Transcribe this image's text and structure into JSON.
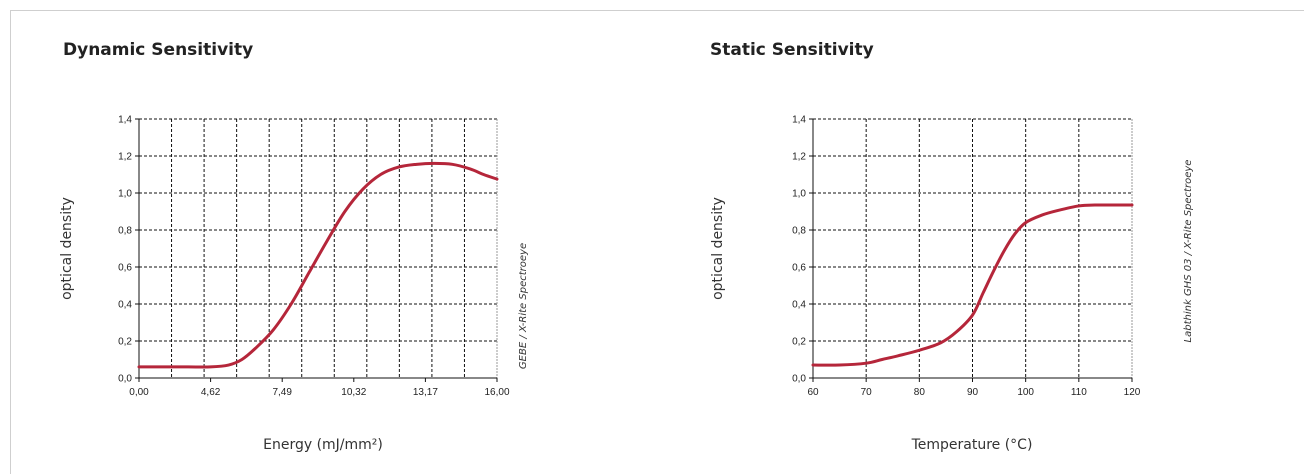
{
  "chart_data": [
    {
      "type": "line",
      "title": "Dynamic Sensitivity",
      "xlabel": "Energy (mJ/mm²)",
      "ylabel": "optical density",
      "source_note": "GEBE / X-Rite Spectroeye",
      "x_ticks": [
        "0,00",
        "4,62",
        "7,49",
        "10,32",
        "13,17",
        "16,00"
      ],
      "y_ticks": [
        "0,0",
        "0,2",
        "0,4",
        "0,6",
        "0,8",
        "1,0",
        "1,2",
        "1,4"
      ],
      "xlim": [
        0,
        16
      ],
      "ylim": [
        0,
        1.4
      ],
      "x_minor_gridlines": 11,
      "grid": true,
      "line_color": "#b5263a",
      "series": [
        {
          "x": [
            0,
            1.2,
            2.2,
            3.2,
            4.0,
            4.6,
            5.2,
            6.0,
            6.8,
            7.6,
            8.4,
            9.2,
            10.0,
            10.8,
            11.6,
            12.4,
            13.2,
            14.0,
            14.8,
            15.4,
            16.0
          ],
          "values": [
            0.06,
            0.06,
            0.06,
            0.06,
            0.07,
            0.1,
            0.16,
            0.26,
            0.4,
            0.57,
            0.74,
            0.9,
            1.02,
            1.1,
            1.14,
            1.155,
            1.16,
            1.155,
            1.13,
            1.1,
            1.075
          ]
        }
      ]
    },
    {
      "type": "line",
      "title": "Static Sensitivity",
      "xlabel": "Temperature (°C)",
      "ylabel": "optical density",
      "source_note": "Labthink GHS 03 / X-Rite Spectroeye",
      "x_ticks": [
        "60",
        "70",
        "80",
        "90",
        "100",
        "110",
        "120"
      ],
      "y_ticks": [
        "0,0",
        "0,2",
        "0,4",
        "0,6",
        "0,8",
        "1,0",
        "1,2",
        "1,4"
      ],
      "xlim": [
        60,
        120
      ],
      "ylim": [
        0,
        1.4
      ],
      "grid": true,
      "line_color": "#b5263a",
      "series": [
        {
          "x": [
            60,
            65,
            70,
            73,
            76,
            80,
            84,
            87,
            90,
            92,
            94,
            96,
            98,
            100,
            103,
            106,
            110,
            113,
            116,
            120
          ],
          "values": [
            0.07,
            0.07,
            0.08,
            0.1,
            0.12,
            0.15,
            0.19,
            0.25,
            0.34,
            0.46,
            0.58,
            0.69,
            0.78,
            0.84,
            0.88,
            0.905,
            0.93,
            0.935,
            0.935,
            0.935
          ]
        }
      ]
    }
  ]
}
